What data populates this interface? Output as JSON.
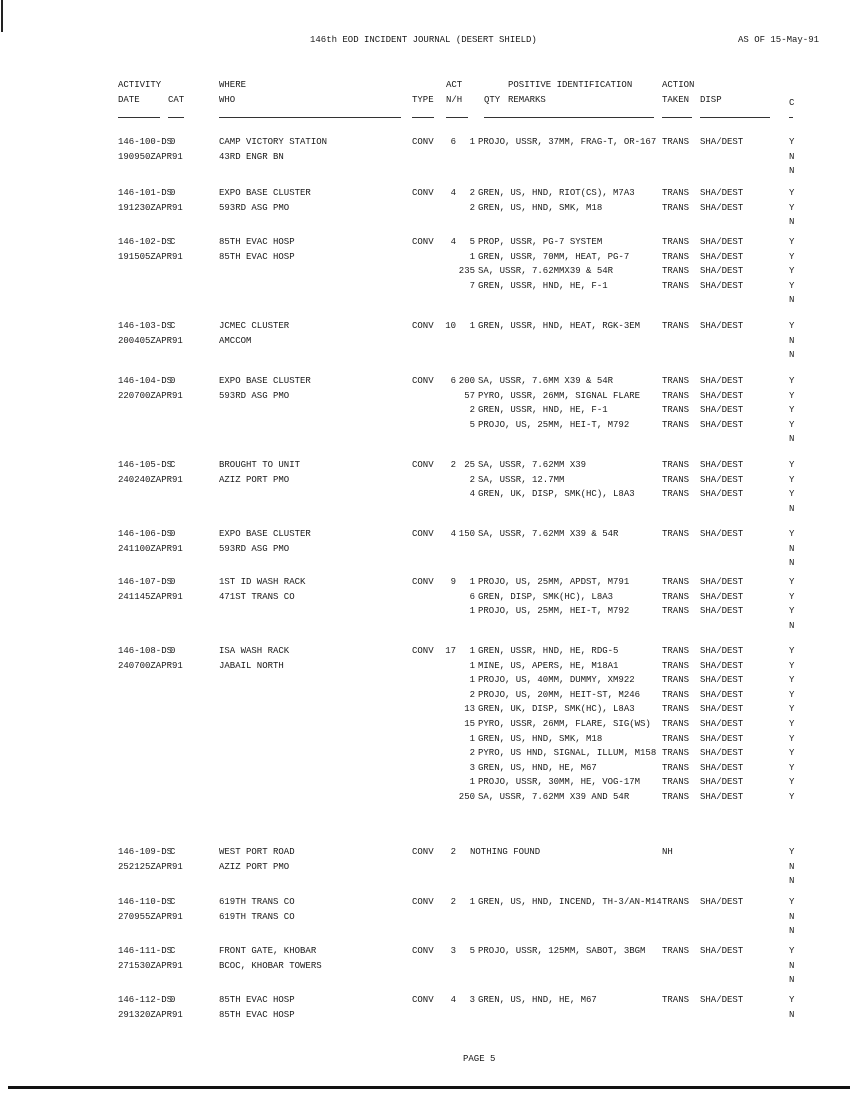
{
  "header": {
    "title": "146th EOD INCIDENT JOURNAL  (DESERT SHIELD)",
    "as_of": "AS OF 15-May-91"
  },
  "columns": {
    "activity": "ACTIVITY",
    "date": "DATE",
    "cat": "CAT",
    "where": "WHERE",
    "who": "WHO",
    "type": "TYPE",
    "act": "ACT",
    "nh": "N/H",
    "qty": "QTY",
    "positive_id": "POSITIVE IDENTIFICATION",
    "remarks": "REMARKS",
    "action": "ACTION",
    "taken": "TAKEN",
    "disp": "DISP",
    "c": "C"
  },
  "entries": [
    {
      "id": "146-100-DS",
      "dtg": "190950ZAPR91",
      "cat": "0",
      "where": "CAMP VICTORY STATION",
      "who": "43RD ENGR BN",
      "type": "CONV",
      "act": "6",
      "items": [
        {
          "qty": "1",
          "remarks": "PROJO, USSR, 37MM, FRAG-T, OR-167",
          "action": "TRANS",
          "disp": "SHA/DEST"
        }
      ],
      "c": [
        "Y",
        "N",
        "N"
      ]
    },
    {
      "id": "146-101-DS",
      "dtg": "191230ZAPR91",
      "cat": "0",
      "where": "EXPO BASE CLUSTER",
      "who": "593RD ASG PMO",
      "type": "CONV",
      "act": "4",
      "items": [
        {
          "qty": "2",
          "remarks": "GREN, US, HND, RIOT(CS), M7A3",
          "action": "TRANS",
          "disp": "SHA/DEST"
        },
        {
          "qty": "2",
          "remarks": "GREN, US, HND, SMK, M18",
          "action": "TRANS",
          "disp": "SHA/DEST"
        }
      ],
      "c": [
        "Y",
        "Y",
        "N"
      ]
    },
    {
      "id": "146-102-DS",
      "dtg": "191505ZAPR91",
      "cat": "C",
      "where": "85TH EVAC HOSP",
      "who": "85TH EVAC HOSP",
      "type": "CONV",
      "act": "4",
      "items": [
        {
          "qty": "5",
          "remarks": "PROP, USSR, PG-7 SYSTEM",
          "action": "TRANS",
          "disp": "SHA/DEST"
        },
        {
          "qty": "1",
          "remarks": "GREN, USSR, 70MM, HEAT, PG-7",
          "action": "TRANS",
          "disp": "SHA/DEST"
        },
        {
          "qty": "235",
          "remarks": "SA, USSR, 7.62MMX39 & 54R",
          "action": "TRANS",
          "disp": "SHA/DEST"
        },
        {
          "qty": "7",
          "remarks": "GREN, USSR, HND, HE, F-1",
          "action": "TRANS",
          "disp": "SHA/DEST"
        }
      ],
      "c": [
        "Y",
        "Y",
        "Y",
        "Y",
        "N"
      ]
    },
    {
      "id": "146-103-DS",
      "dtg": "200405ZAPR91",
      "cat": "C",
      "where": "JCMEC CLUSTER",
      "who": "AMCCOM",
      "type": "CONV",
      "act": "10",
      "items": [
        {
          "qty": "1",
          "remarks": "GREN, USSR, HND, HEAT, RGK-3EM",
          "action": "TRANS",
          "disp": "SHA/DEST"
        }
      ],
      "c": [
        "Y",
        "N",
        "N"
      ]
    },
    {
      "id": "146-104-DS",
      "dtg": "220700ZAPR91",
      "cat": "0",
      "where": "EXPO BASE CLUSTER",
      "who": "593RD ASG PMO",
      "type": "CONV",
      "act": "6",
      "items": [
        {
          "qty": "200",
          "remarks": "SA, USSR, 7.6MM X39 & 54R",
          "action": "TRANS",
          "disp": "SHA/DEST"
        },
        {
          "qty": "57",
          "remarks": "PYRO, USSR, 26MM, SIGNAL FLARE",
          "action": "TRANS",
          "disp": "SHA/DEST"
        },
        {
          "qty": "2",
          "remarks": "GREN, USSR, HND, HE, F-1",
          "action": "TRANS",
          "disp": "SHA/DEST"
        },
        {
          "qty": "5",
          "remarks": "PROJO, US, 25MM, HEI-T, M792",
          "action": "TRANS",
          "disp": "SHA/DEST"
        }
      ],
      "c": [
        "Y",
        "Y",
        "Y",
        "Y",
        "N"
      ]
    },
    {
      "id": "146-105-DS",
      "dtg": "240240ZAPR91",
      "cat": "C",
      "where": "BROUGHT TO UNIT",
      "who": "AZIZ PORT PMO",
      "type": "CONV",
      "act": "2",
      "items": [
        {
          "qty": "25",
          "remarks": "SA, USSR, 7.62MM X39",
          "action": "TRANS",
          "disp": "SHA/DEST"
        },
        {
          "qty": "2",
          "remarks": "SA, USSR, 12.7MM",
          "action": "TRANS",
          "disp": "SHA/DEST"
        },
        {
          "qty": "4",
          "remarks": "GREN, UK, DISP, SMK(HC), L8A3",
          "action": "TRANS",
          "disp": "SHA/DEST"
        }
      ],
      "c": [
        "Y",
        "Y",
        "Y",
        "N"
      ]
    },
    {
      "id": "146-106-DS",
      "dtg": "241100ZAPR91",
      "cat": "0",
      "where": "EXPO BASE CLUSTER",
      "who": "593RD ASG PMO",
      "type": "CONV",
      "act": "4",
      "items": [
        {
          "qty": "150",
          "remarks": "SA, USSR, 7.62MM X39 & 54R",
          "action": "TRANS",
          "disp": "SHA/DEST"
        }
      ],
      "c": [
        "Y",
        "N",
        "N"
      ]
    },
    {
      "id": "146-107-DS",
      "dtg": "241145ZAPR91",
      "cat": "0",
      "where": "1ST ID WASH RACK",
      "who": "471ST TRANS CO",
      "type": "CONV",
      "act": "9",
      "items": [
        {
          "qty": "1",
          "remarks": "PROJO, US, 25MM, APDST, M791",
          "action": "TRANS",
          "disp": "SHA/DEST"
        },
        {
          "qty": "6",
          "remarks": "GREN, DISP, SMK(HC), L8A3",
          "action": "TRANS",
          "disp": "SHA/DEST"
        },
        {
          "qty": "1",
          "remarks": "PROJO, US, 25MM, HEI-T, M792",
          "action": "TRANS",
          "disp": "SHA/DEST"
        }
      ],
      "c": [
        "Y",
        "Y",
        "Y",
        "N"
      ]
    },
    {
      "id": "146-108-DS",
      "dtg": "240700ZAPR91",
      "cat": "0",
      "where": "ISA WASH RACK",
      "who": "JABAIL NORTH",
      "type": "CONV",
      "act": "17",
      "items": [
        {
          "qty": "1",
          "remarks": "GREN, USSR, HND, HE, RDG-5",
          "action": "TRANS",
          "disp": "SHA/DEST"
        },
        {
          "qty": "1",
          "remarks": "MINE, US, APERS, HE, M18A1",
          "action": "TRANS",
          "disp": "SHA/DEST"
        },
        {
          "qty": "1",
          "remarks": "PROJO, US, 40MM, DUMMY, XM922",
          "action": "TRANS",
          "disp": "SHA/DEST"
        },
        {
          "qty": "2",
          "remarks": "PROJO, US, 20MM, HEIT-ST, M246",
          "action": "TRANS",
          "disp": "SHA/DEST"
        },
        {
          "qty": "13",
          "remarks": "GREN, UK, DISP, SMK(HC), L8A3",
          "action": "TRANS",
          "disp": "SHA/DEST"
        },
        {
          "qty": "15",
          "remarks": "PYRO, USSR, 26MM, FLARE, SIG(WS)",
          "action": "TRANS",
          "disp": "SHA/DEST"
        },
        {
          "qty": "1",
          "remarks": "GREN, US, HND, SMK, M18",
          "action": "TRANS",
          "disp": "SHA/DEST"
        },
        {
          "qty": "2",
          "remarks": "PYRO, US HND, SIGNAL, ILLUM, M158",
          "action": "TRANS",
          "disp": "SHA/DEST"
        },
        {
          "qty": "3",
          "remarks": "GREN, US, HND, HE, M67",
          "action": "TRANS",
          "disp": "SHA/DEST"
        },
        {
          "qty": "1",
          "remarks": "PROJO, USSR, 30MM, HE, VOG-17M",
          "action": "TRANS",
          "disp": "SHA/DEST"
        },
        {
          "qty": "250",
          "remarks": "SA, USSR, 7.62MM X39 AND 54R",
          "action": "TRANS",
          "disp": "SHA/DEST"
        }
      ],
      "c": [
        "Y",
        "Y",
        "Y",
        "Y",
        "Y",
        "Y",
        "Y",
        "Y",
        "Y",
        "Y",
        "Y"
      ]
    },
    {
      "id": "146-109-DS",
      "dtg": "252125ZAPR91",
      "cat": "C",
      "where": "WEST PORT ROAD",
      "who": "AZIZ PORT PMO",
      "type": "CONV",
      "act": "2",
      "items": [
        {
          "qty": "",
          "remarks": "NOTHING FOUND",
          "action": "NH",
          "disp": ""
        }
      ],
      "c": [
        "Y",
        "N",
        "N"
      ]
    },
    {
      "id": "146-110-DS",
      "dtg": "270955ZAPR91",
      "cat": "C",
      "where": "619TH TRANS CO",
      "who": "619TH TRANS CO",
      "type": "CONV",
      "act": "2",
      "items": [
        {
          "qty": "1",
          "remarks": "GREN, US, HND, INCEND, TH-3/AN-M14",
          "action": "TRANS",
          "disp": "SHA/DEST"
        }
      ],
      "c": [
        "Y",
        "N",
        "N"
      ]
    },
    {
      "id": "146-111-DS",
      "dtg": "271530ZAPR91",
      "cat": "C",
      "where": "FRONT GATE, KHOBAR",
      "who": "BCOC, KHOBAR TOWERS",
      "type": "CONV",
      "act": "3",
      "items": [
        {
          "qty": "5",
          "remarks": "PROJO, USSR, 125MM, SABOT, 3BGM",
          "action": "TRANS",
          "disp": "SHA/DEST"
        }
      ],
      "c": [
        "Y",
        "N",
        "N"
      ]
    },
    {
      "id": "146-112-DS",
      "dtg": "291320ZAPR91",
      "cat": "0",
      "where": "85TH EVAC HOSP",
      "who": "85TH EVAC HOSP",
      "type": "CONV",
      "act": "4",
      "items": [
        {
          "qty": "3",
          "remarks": "GREN, US, HND, HE, M67",
          "action": "TRANS",
          "disp": "SHA/DEST"
        }
      ],
      "c": [
        "Y",
        "N"
      ]
    }
  ],
  "footer": {
    "page": "PAGE 5"
  }
}
